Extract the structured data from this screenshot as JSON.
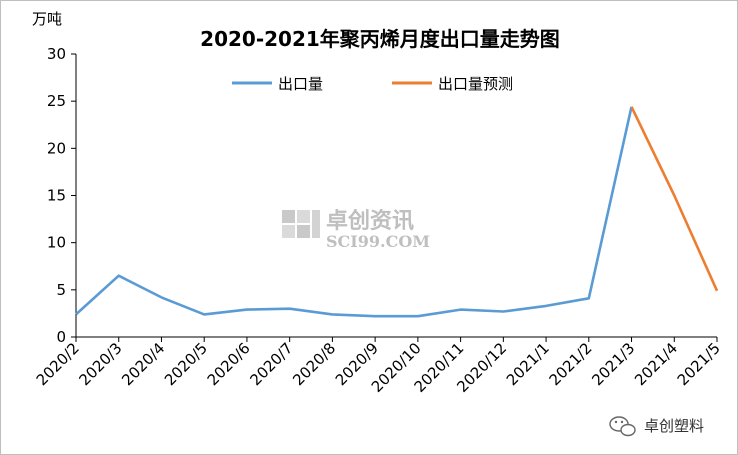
{
  "chart_data": {
    "type": "line",
    "title": "2020-2021年聚丙烯月度出口量走势图",
    "ylabel": "万吨",
    "ylim": [
      0,
      30
    ],
    "yticks": [
      0,
      5,
      10,
      15,
      20,
      25,
      30
    ],
    "grid": false,
    "legend_position": "top",
    "categories": [
      "2020/2",
      "2020/3",
      "2020/4",
      "2020/5",
      "2020/6",
      "2020/7",
      "2020/8",
      "2020/9",
      "2020/10",
      "2020/11",
      "2020/12",
      "2021/1",
      "2021/2",
      "2021/3",
      "2021/4",
      "2021/5"
    ],
    "series": [
      {
        "name": "出口量",
        "color": "#5b9bd5",
        "values": [
          2.4,
          6.5,
          4.2,
          2.4,
          2.9,
          3.0,
          2.4,
          2.2,
          2.2,
          2.9,
          2.7,
          3.3,
          4.1,
          24.4,
          null,
          null
        ]
      },
      {
        "name": "出口量预测",
        "color": "#ed7d31",
        "values": [
          null,
          null,
          null,
          null,
          null,
          null,
          null,
          null,
          null,
          null,
          null,
          null,
          null,
          24.4,
          15.0,
          4.9
        ]
      }
    ]
  },
  "watermark": {
    "brand_cn": "卓创资讯",
    "brand_en": "SCI99.COM"
  },
  "source_tag": {
    "icon": "wechat-icon",
    "text": "卓创塑料"
  }
}
